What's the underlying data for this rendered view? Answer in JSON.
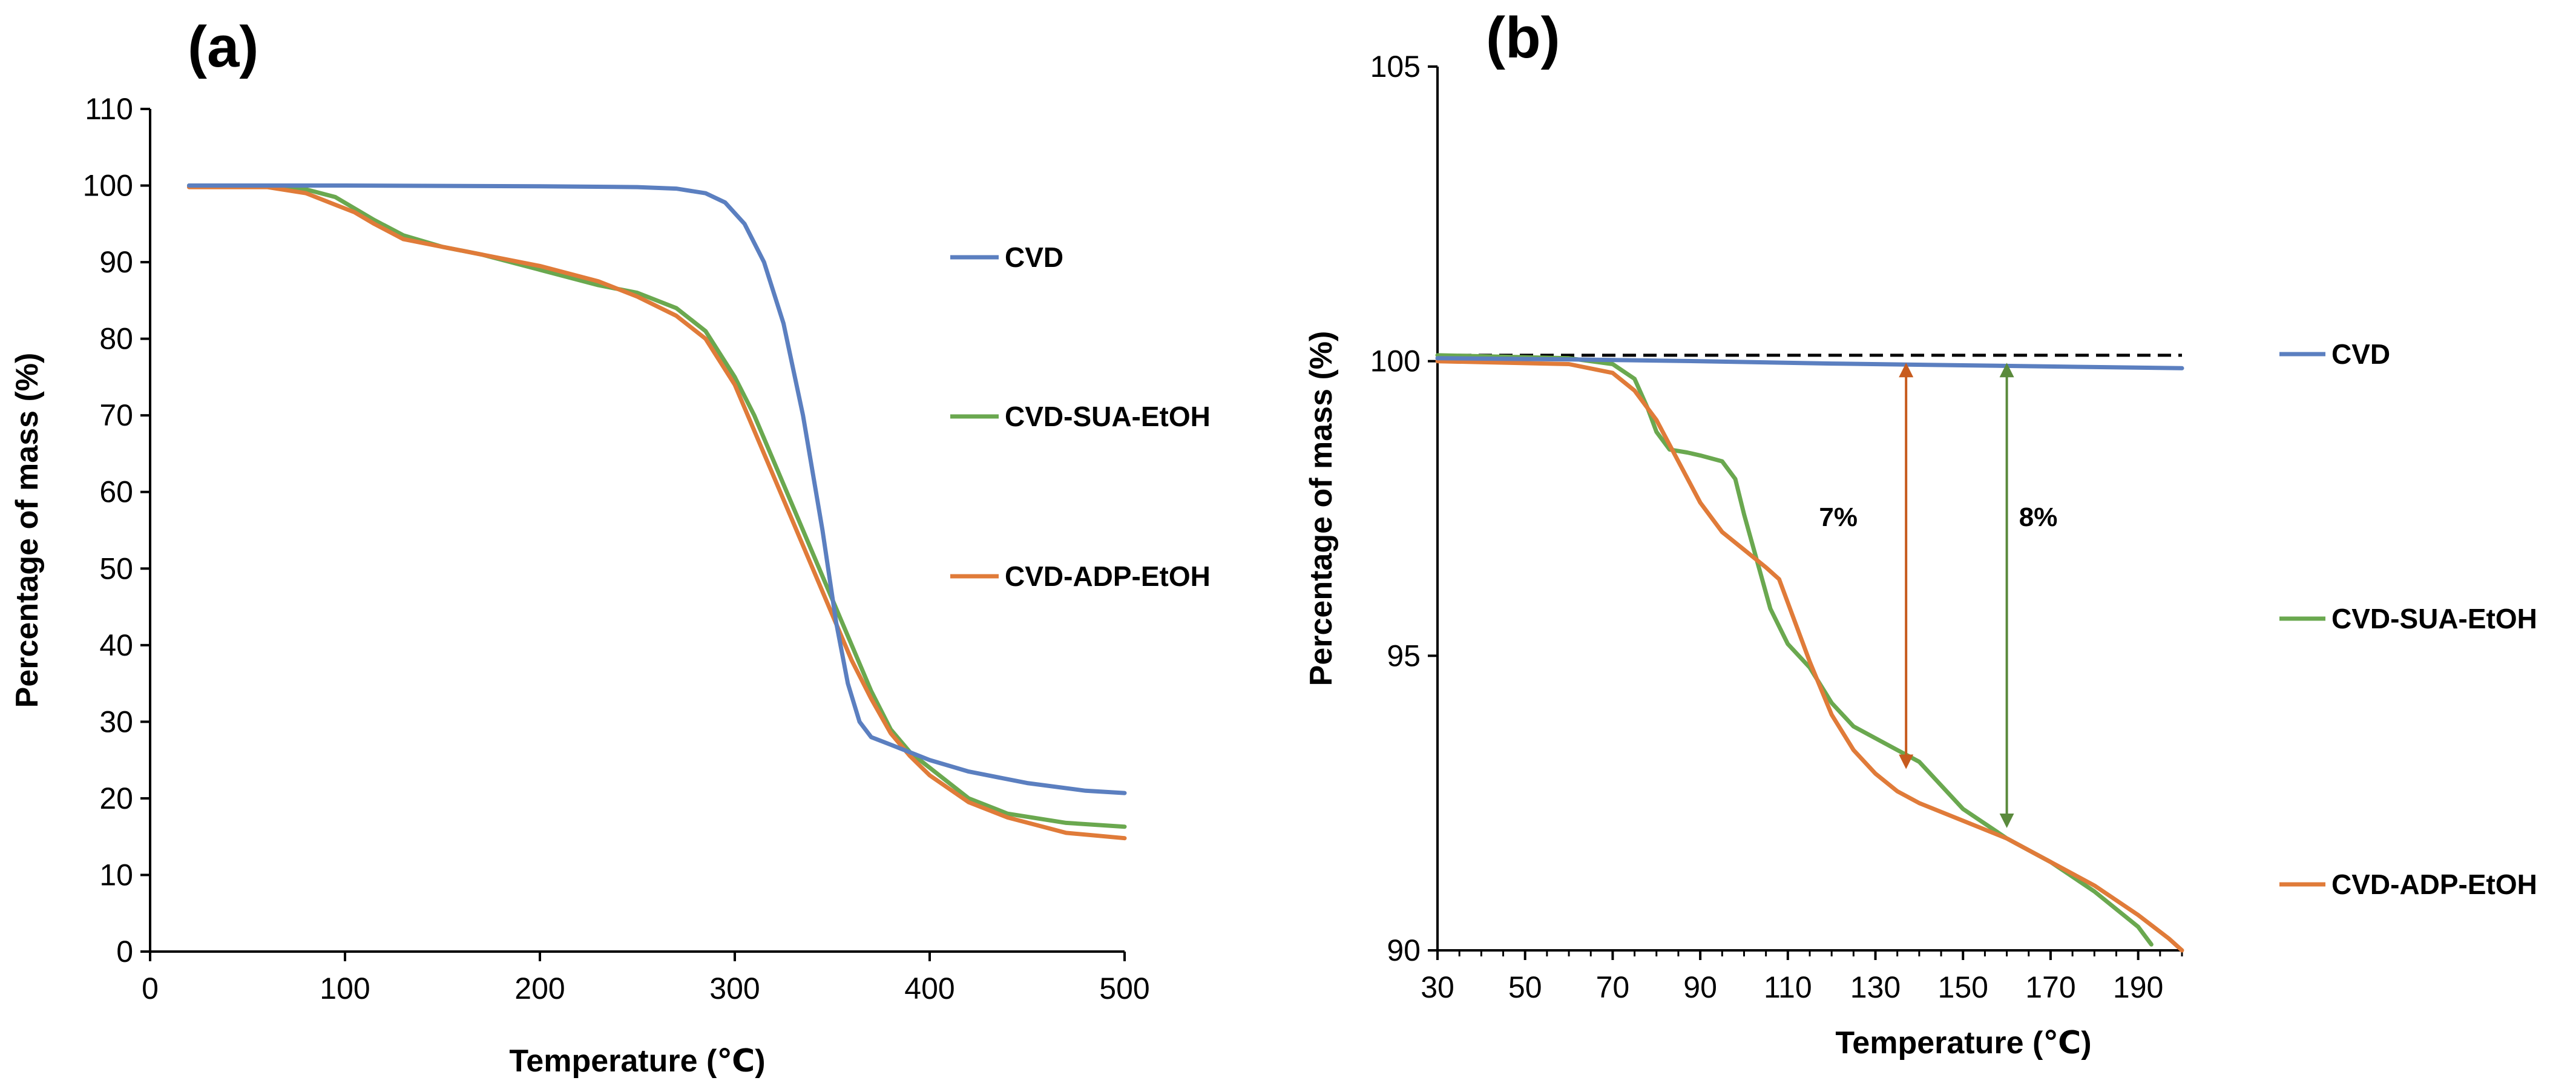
{
  "chart_data": [
    {
      "panel": "(a)",
      "type": "line",
      "xlabel": "Temperature (℃)",
      "ylabel": "Percentage of mass (%)",
      "xlim": [
        0,
        500
      ],
      "ylim": [
        0,
        110
      ],
      "xticks": [
        0,
        100,
        200,
        300,
        400,
        500
      ],
      "yticks": [
        0,
        10,
        20,
        30,
        40,
        50,
        60,
        70,
        80,
        90,
        100,
        110
      ],
      "grid": false,
      "legend_position": "right",
      "series": [
        {
          "name": "CVD",
          "color": "#5b7fc0",
          "x": [
            20,
            100,
            200,
            250,
            270,
            285,
            295,
            305,
            315,
            325,
            335,
            345,
            352,
            358,
            364,
            370,
            380,
            400,
            420,
            450,
            480,
            500
          ],
          "y": [
            100,
            100,
            99.9,
            99.8,
            99.6,
            99,
            97.8,
            95,
            90,
            82,
            70,
            55,
            43,
            35,
            30,
            28,
            27,
            25,
            23.5,
            22,
            21,
            20.7
          ]
        },
        {
          "name": "CVD-SUA-EtOH",
          "color": "#6aa84f",
          "x": [
            20,
            60,
            80,
            95,
            105,
            115,
            130,
            150,
            170,
            200,
            230,
            250,
            270,
            285,
            300,
            310,
            320,
            330,
            340,
            350,
            360,
            370,
            380,
            390,
            400,
            420,
            440,
            470,
            500
          ],
          "y": [
            100,
            100,
            99.5,
            98.5,
            97,
            95.5,
            93.5,
            92,
            91,
            89,
            87,
            86,
            84,
            81,
            75,
            70,
            64,
            58,
            52,
            46,
            40,
            34,
            29,
            26,
            24,
            20,
            18,
            16.8,
            16.3
          ]
        },
        {
          "name": "CVD-ADP-EtOH",
          "color": "#e07b39",
          "x": [
            20,
            60,
            80,
            95,
            105,
            115,
            130,
            150,
            170,
            200,
            230,
            250,
            270,
            285,
            300,
            310,
            320,
            330,
            340,
            350,
            360,
            370,
            380,
            390,
            400,
            420,
            440,
            470,
            500
          ],
          "y": [
            99.8,
            99.8,
            99,
            97.5,
            96.5,
            95,
            93,
            92,
            91,
            89.5,
            87.5,
            85.5,
            83,
            80,
            74,
            68,
            62,
            56,
            50,
            44,
            38,
            33,
            28.5,
            25.5,
            23,
            19.5,
            17.5,
            15.5,
            14.8
          ]
        }
      ]
    },
    {
      "panel": "(b)",
      "type": "line",
      "xlabel": "Temperature (℃)",
      "ylabel": "Percentage of mass (%)",
      "xlim": [
        30,
        200
      ],
      "ylim": [
        90,
        105
      ],
      "xticks": [
        30,
        50,
        70,
        90,
        110,
        130,
        150,
        170,
        190
      ],
      "yticks": [
        90,
        95,
        100,
        105
      ],
      "grid": false,
      "legend_position": "right",
      "reference_line_y": 100.1,
      "annotations": [
        {
          "text": "7%",
          "x": 137,
          "y_top": 99.85,
          "y_bottom": 93.2,
          "color": "#c75b1e"
        },
        {
          "text": "8%",
          "x": 160,
          "y_top": 99.85,
          "y_bottom": 92.2,
          "color": "#5a8a3c"
        }
      ],
      "series": [
        {
          "name": "CVD",
          "color": "#5b7fc0",
          "x": [
            30,
            60,
            90,
            120,
            150,
            180,
            200
          ],
          "y": [
            100.05,
            100.03,
            100.0,
            99.96,
            99.93,
            99.9,
            99.88
          ]
        },
        {
          "name": "CVD-SUA-EtOH",
          "color": "#6aa84f",
          "x": [
            30,
            60,
            70,
            75,
            78,
            80,
            83,
            87,
            90,
            95,
            98,
            100,
            103,
            106,
            110,
            115,
            120,
            125,
            130,
            135,
            140,
            145,
            150,
            160,
            170,
            180,
            190,
            193
          ],
          "y": [
            100.1,
            100.05,
            99.95,
            99.7,
            99.2,
            98.8,
            98.5,
            98.45,
            98.4,
            98.3,
            98.0,
            97.4,
            96.6,
            95.8,
            95.2,
            94.8,
            94.2,
            93.8,
            93.6,
            93.4,
            93.2,
            92.8,
            92.4,
            91.9,
            91.5,
            91.0,
            90.4,
            90.1
          ]
        },
        {
          "name": "CVD-ADP-EtOH",
          "color": "#e07b39",
          "x": [
            30,
            60,
            70,
            75,
            80,
            85,
            90,
            95,
            100,
            105,
            108,
            110,
            115,
            120,
            125,
            130,
            135,
            140,
            150,
            160,
            170,
            180,
            190,
            197,
            200
          ],
          "y": [
            100.0,
            99.95,
            99.8,
            99.5,
            99.0,
            98.3,
            97.6,
            97.1,
            96.8,
            96.5,
            96.3,
            95.9,
            94.9,
            94.0,
            93.4,
            93.0,
            92.7,
            92.5,
            92.2,
            91.9,
            91.5,
            91.1,
            90.6,
            90.2,
            90.0
          ]
        }
      ]
    }
  ]
}
